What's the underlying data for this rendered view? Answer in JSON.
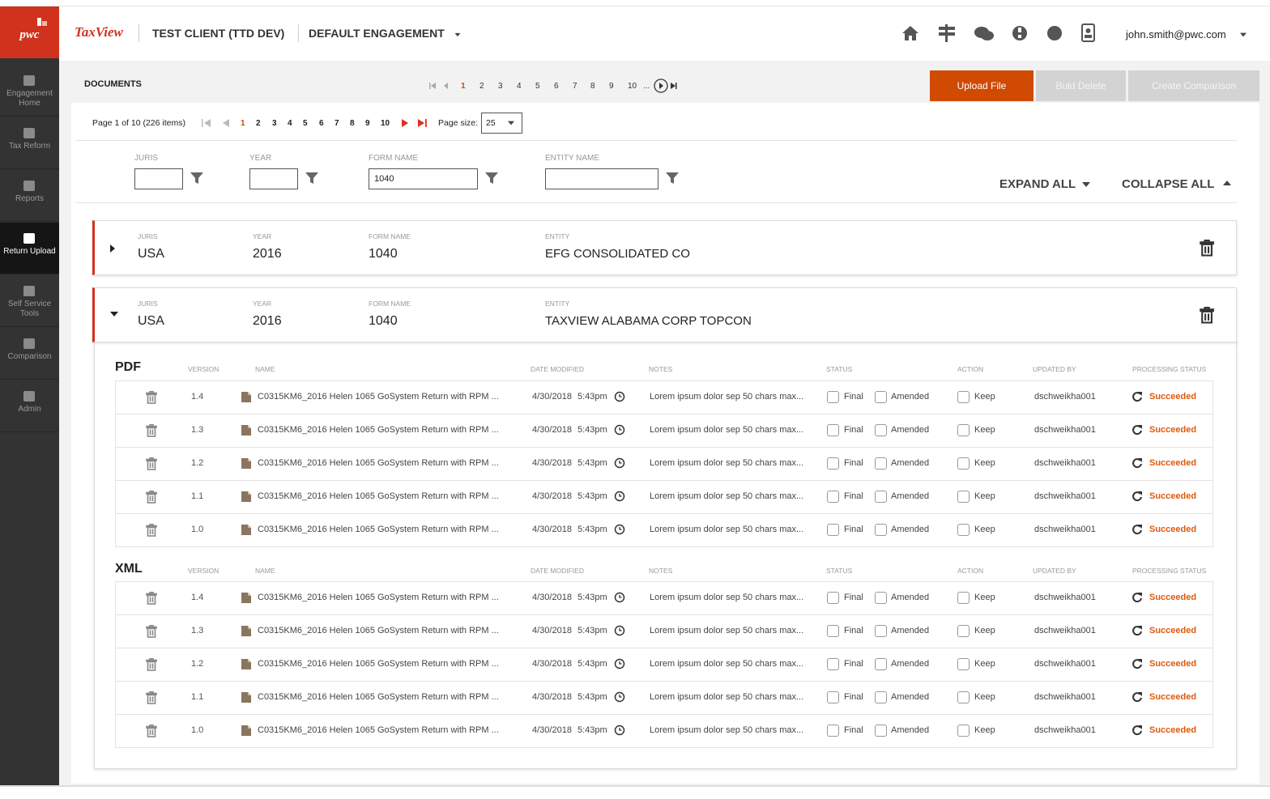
{
  "sidebar": {
    "logo": "pwc",
    "items": [
      {
        "label": "Engagement Home"
      },
      {
        "label": "Tax Reform"
      },
      {
        "label": "Reports"
      },
      {
        "label": "Return Upload",
        "active": true
      },
      {
        "label": "Self Service Tools"
      },
      {
        "label": "Comparison"
      },
      {
        "label": "Admin"
      }
    ]
  },
  "header": {
    "app_name": "TaxView",
    "client": "TEST CLIENT (TTD DEV)",
    "engagement": "DEFAULT ENGAGEMENT",
    "user": "john.smith@pwc.com"
  },
  "documents": {
    "title": "DOCUMENTS",
    "top_pages": [
      "1",
      "2",
      "3",
      "4",
      "5",
      "6",
      "7",
      "8",
      "9",
      "10",
      "..."
    ],
    "buttons": [
      "Upload File",
      "Buld Delete",
      "Create Comparison"
    ]
  },
  "pager": {
    "info": "Page 1 of 10 (226 items)",
    "pages": [
      "1",
      "2",
      "3",
      "4",
      "5",
      "6",
      "7",
      "8",
      "9",
      "10"
    ],
    "page_size_label": "Page size:",
    "page_size": "25"
  },
  "filters": [
    {
      "label": "JURIS"
    },
    {
      "label": "YEAR"
    },
    {
      "label": "FORM NAME",
      "value": "1040"
    },
    {
      "label": "ENTITY NAME"
    }
  ],
  "expand_all": "EXPAND ALL",
  "collapse_all": "COLLAPSE ALL",
  "returns": [
    {
      "expanded": false,
      "fields": [
        {
          "label": "JURIS",
          "value": "USA"
        },
        {
          "label": "YEAR",
          "value": "2016"
        },
        {
          "label": "FORM NAME",
          "value": "1040"
        },
        {
          "label": "ENTITY",
          "value": "EFG CONSOLIDATED CO"
        }
      ]
    },
    {
      "expanded": true,
      "fields": [
        {
          "label": "JURIS",
          "value": "USA"
        },
        {
          "label": "YEAR",
          "value": "2016"
        },
        {
          "label": "FORM NAME",
          "value": "1040"
        },
        {
          "label": "ENTITY",
          "value": "TAXVIEW ALABAMA CORP TOPCON"
        }
      ]
    }
  ],
  "files": {
    "groups": [
      {
        "title": "PDF",
        "columns": [
          "VERSION",
          "NAME",
          "DATE MODIFIED",
          "NOTES",
          "STATUS",
          "ACTION",
          "UPDATED BY",
          "PROCESSING STATUS"
        ],
        "rows": [
          {
            "version": "1.4",
            "name": "C0315KM6_2016 Helen 1065 GoSystem Return with RPM ...",
            "date": "4/30/2018",
            "time": "5:43pm",
            "notes": "Lorem ipsum dolor sep 50 chars max...",
            "status": [
              "Final",
              "Amended"
            ],
            "action": "Keep",
            "updated_by": "dschweikha001",
            "processing": "Succeeded"
          },
          {
            "version": "1.3",
            "name": "C0315KM6_2016 Helen 1065 GoSystem Return with RPM ...",
            "date": "4/30/2018",
            "time": "5:43pm",
            "notes": "Lorem ipsum dolor sep 50 chars max...",
            "status": [
              "Final",
              "Amended"
            ],
            "action": "Keep",
            "updated_by": "dschweikha001",
            "processing": "Succeeded"
          },
          {
            "version": "1.2",
            "name": "C0315KM6_2016 Helen 1065 GoSystem Return with RPM ...",
            "date": "4/30/2018",
            "time": "5:43pm",
            "notes": "Lorem ipsum dolor sep 50 chars max...",
            "status": [
              "Final",
              "Amended"
            ],
            "action": "Keep",
            "updated_by": "dschweikha001",
            "processing": "Succeeded"
          },
          {
            "version": "1.1",
            "name": "C0315KM6_2016 Helen 1065 GoSystem Return with RPM ...",
            "date": "4/30/2018",
            "time": "5:43pm",
            "notes": "Lorem ipsum dolor sep 50 chars max...",
            "status": [
              "Final",
              "Amended"
            ],
            "action": "Keep",
            "updated_by": "dschweikha001",
            "processing": "Succeeded"
          },
          {
            "version": "1.0",
            "name": "C0315KM6_2016 Helen 1065 GoSystem Return with RPM ...",
            "date": "4/30/2018",
            "time": "5:43pm",
            "notes": "Lorem ipsum dolor sep 50 chars max...",
            "status": [
              "Final",
              "Amended"
            ],
            "action": "Keep",
            "updated_by": "dschweikha001",
            "processing": "Succeeded"
          }
        ]
      },
      {
        "title": "XML",
        "columns": [
          "VERSION",
          "NAME",
          "DATE MODIFIED",
          "NOTES",
          "STATUS",
          "ACTION",
          "UPDATED BY",
          "PROCESSING STATUS"
        ],
        "rows": [
          {
            "version": "1.4",
            "name": "C0315KM6_2016 Helen 1065 GoSystem Return with RPM ...",
            "date": "4/30/2018",
            "time": "5:43pm",
            "notes": "Lorem ipsum dolor sep 50 chars max...",
            "status": [
              "Final",
              "Amended"
            ],
            "action": "Keep",
            "updated_by": "dschweikha001",
            "processing": "Succeeded"
          },
          {
            "version": "1.3",
            "name": "C0315KM6_2016 Helen 1065 GoSystem Return with RPM ...",
            "date": "4/30/2018",
            "time": "5:43pm",
            "notes": "Lorem ipsum dolor sep 50 chars max...",
            "status": [
              "Final",
              "Amended"
            ],
            "action": "Keep",
            "updated_by": "dschweikha001",
            "processing": "Succeeded"
          },
          {
            "version": "1.2",
            "name": "C0315KM6_2016 Helen 1065 GoSystem Return with RPM ...",
            "date": "4/30/2018",
            "time": "5:43pm",
            "notes": "Lorem ipsum dolor sep 50 chars max...",
            "status": [
              "Final",
              "Amended"
            ],
            "action": "Keep",
            "updated_by": "dschweikha001",
            "processing": "Succeeded"
          },
          {
            "version": "1.1",
            "name": "C0315KM6_2016 Helen 1065 GoSystem Return with RPM ...",
            "date": "4/30/2018",
            "time": "5:43pm",
            "notes": "Lorem ipsum dolor sep 50 chars max...",
            "status": [
              "Final",
              "Amended"
            ],
            "action": "Keep",
            "updated_by": "dschweikha001",
            "processing": "Succeeded"
          },
          {
            "version": "1.0",
            "name": "C0315KM6_2016 Helen 1065 GoSystem Return with RPM ...",
            "date": "4/30/2018",
            "time": "5:43pm",
            "notes": "Lorem ipsum dolor sep 50 chars max...",
            "status": [
              "Final",
              "Amended"
            ],
            "action": "Keep",
            "updated_by": "dschweikha001",
            "processing": "Succeeded"
          }
        ]
      }
    ]
  }
}
